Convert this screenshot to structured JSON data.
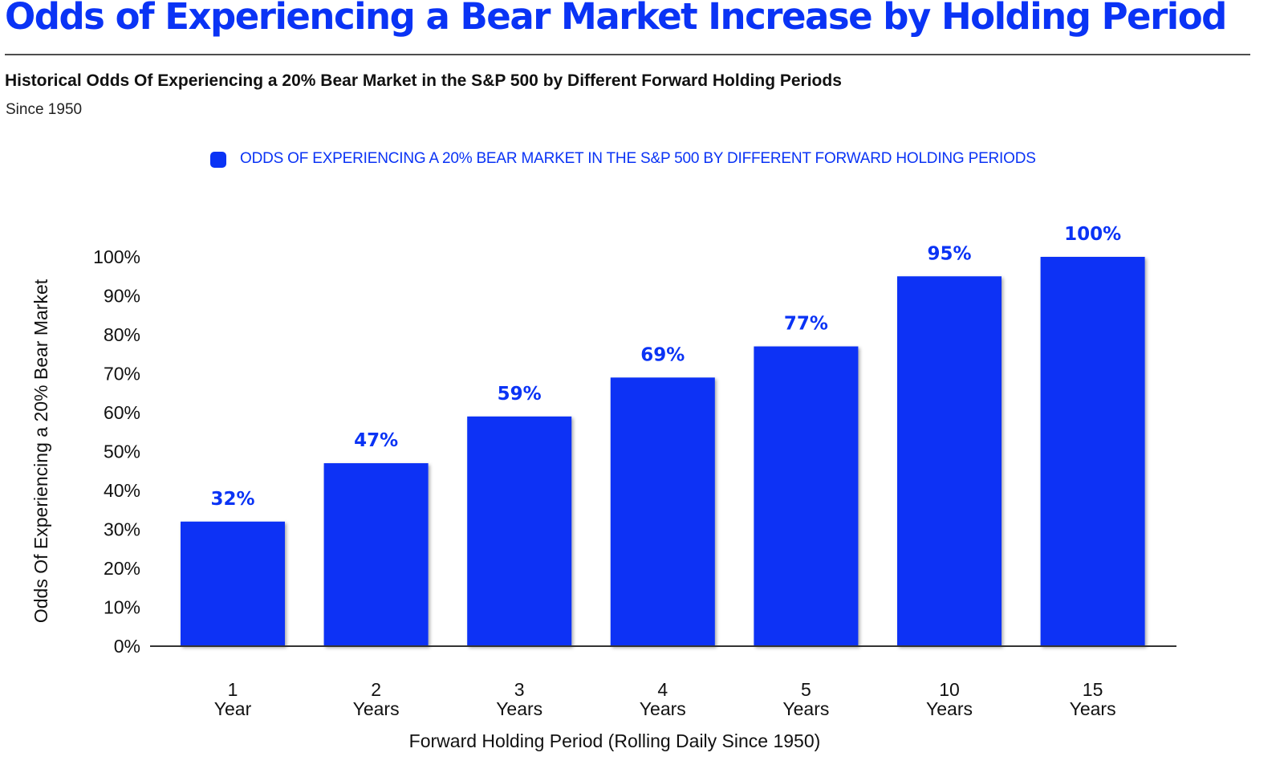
{
  "header": {
    "title": "Odds of Experiencing a Bear Market Increase by Holding Period",
    "subtitle": "Historical Odds Of Experiencing a 20% Bear Market in the S&P 500 by Different Forward Holding Periods",
    "note": "Since 1950"
  },
  "colors": {
    "bar": "#0a33f5",
    "accent": "#0a33f5",
    "axis": "#333333",
    "text": "#111111"
  },
  "chart_data": {
    "type": "bar",
    "title": "Odds of Experiencing a Bear Market Increase by Holding Period",
    "subtitle": "Historical Odds Of Experiencing a 20% Bear Market in the S&P 500 by Different Forward Holding Periods",
    "categories": [
      [
        "1",
        "Year"
      ],
      [
        "2",
        "Years"
      ],
      [
        "3",
        "Years"
      ],
      [
        "4",
        "Years"
      ],
      [
        "5",
        "Years"
      ],
      [
        "10",
        "Years"
      ],
      [
        "15",
        "Years"
      ]
    ],
    "series": [
      {
        "name": "ODDS OF EXPERIENCING A 20% BEAR MARKET IN THE S&P 500 BY DIFFERENT FORWARD HOLDING PERIODS",
        "values": [
          32,
          47,
          59,
          69,
          77,
          95,
          100
        ],
        "labels": [
          "32%",
          "47%",
          "59%",
          "69%",
          "77%",
          "95%",
          "100%"
        ]
      }
    ],
    "xlabel": "Forward Holding Period (Rolling Daily Since 1950)",
    "ylabel": "Odds Of Experiencing a 20% Bear Market",
    "ylim": [
      0,
      100
    ],
    "yticks": [
      0,
      10,
      20,
      30,
      40,
      50,
      60,
      70,
      80,
      90,
      100
    ],
    "ytick_labels": [
      "0%",
      "10%",
      "20%",
      "30%",
      "40%",
      "50%",
      "60%",
      "70%",
      "80%",
      "90%",
      "100%"
    ],
    "grid": false,
    "legend": "top"
  }
}
